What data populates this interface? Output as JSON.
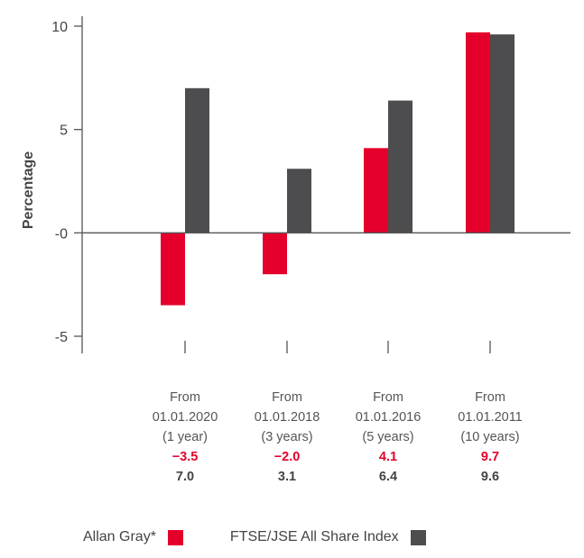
{
  "chart_data": {
    "type": "bar",
    "ylabel": "Percentage",
    "ylim": [
      -5,
      10
    ],
    "yticks": [
      {
        "value": 10,
        "label": "10"
      },
      {
        "value": 5,
        "label": "5"
      },
      {
        "value": 0,
        "label": "-0"
      },
      {
        "value": -5,
        "label": "-5"
      }
    ],
    "categories": [
      [
        "From",
        "01.01.2020",
        "(1 year)"
      ],
      [
        "From",
        "01.01.2018",
        "(3 years)"
      ],
      [
        "From",
        "01.01.2016",
        "(5 years)"
      ],
      [
        "From",
        "01.01.2011",
        "(10 years)"
      ]
    ],
    "series": [
      {
        "name": "Allan Gray*",
        "color": "#e4002b",
        "values": [
          -3.5,
          -2.0,
          4.1,
          9.7
        ],
        "labels": [
          "−3.5",
          "−2.0",
          "4.1",
          "9.7"
        ]
      },
      {
        "name": "FTSE/JSE All Share Index",
        "color": "#4d4d4f",
        "values": [
          7.0,
          3.1,
          6.4,
          9.6
        ],
        "labels": [
          "7.0",
          "3.1",
          "6.4",
          "9.6"
        ]
      }
    ],
    "legend_position": "bottom-left",
    "grid": false
  }
}
